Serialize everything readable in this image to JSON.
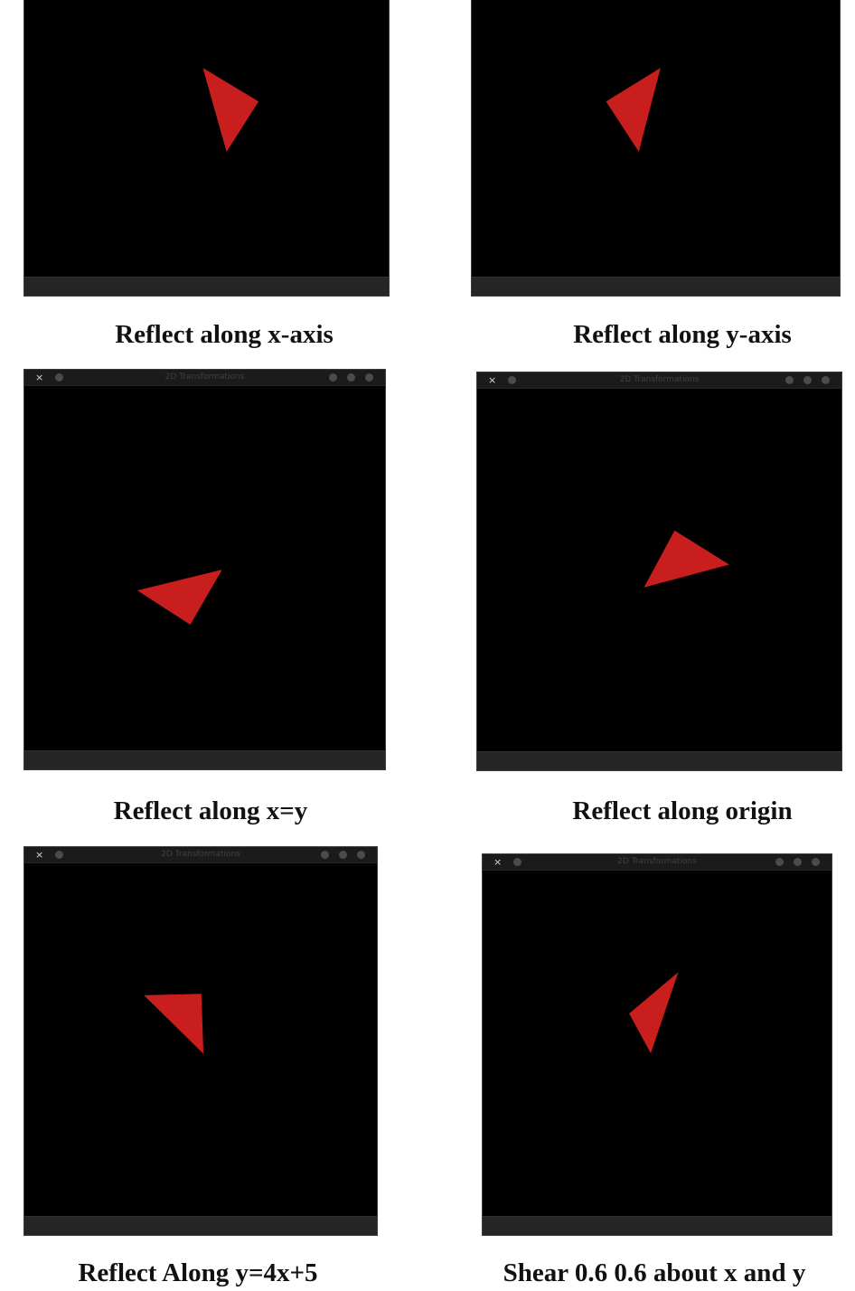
{
  "figure": {
    "window_title": "2D Transformations",
    "close_glyph": "×",
    "triangle_color": "#c81e1e",
    "panels": [
      {
        "id": "reflect-x-axis",
        "caption": "Reflect along x-axis",
        "show_titlebar": false,
        "triangle": [
          [
            0.49,
            0.253
          ],
          [
            0.643,
            0.373
          ],
          [
            0.555,
            0.553
          ]
        ]
      },
      {
        "id": "reflect-y-axis",
        "caption": "Reflect along y-axis",
        "show_titlebar": false,
        "triangle": [
          [
            0.513,
            0.253
          ],
          [
            0.365,
            0.373
          ],
          [
            0.454,
            0.553
          ]
        ]
      },
      {
        "id": "reflect-x-equals-y",
        "caption": "Reflect along x=y",
        "show_titlebar": true,
        "triangle": [
          [
            0.313,
            0.561
          ],
          [
            0.548,
            0.504
          ],
          [
            0.46,
            0.655
          ]
        ]
      },
      {
        "id": "reflect-origin",
        "caption": "Reflect along origin",
        "show_titlebar": true,
        "triangle": [
          [
            0.458,
            0.548
          ],
          [
            0.542,
            0.391
          ],
          [
            0.692,
            0.485
          ]
        ]
      },
      {
        "id": "reflect-y-4x-5",
        "caption": "Reflect Along y=4x+5",
        "show_titlebar": true,
        "triangle": [
          [
            0.339,
            0.374
          ],
          [
            0.502,
            0.37
          ],
          [
            0.508,
            0.54
          ]
        ]
      },
      {
        "id": "shear-06",
        "caption": "Shear 0.6 0.6 about x and y",
        "show_titlebar": true,
        "triangle": [
          [
            0.42,
            0.414
          ],
          [
            0.561,
            0.294
          ],
          [
            0.482,
            0.529
          ]
        ]
      }
    ]
  }
}
